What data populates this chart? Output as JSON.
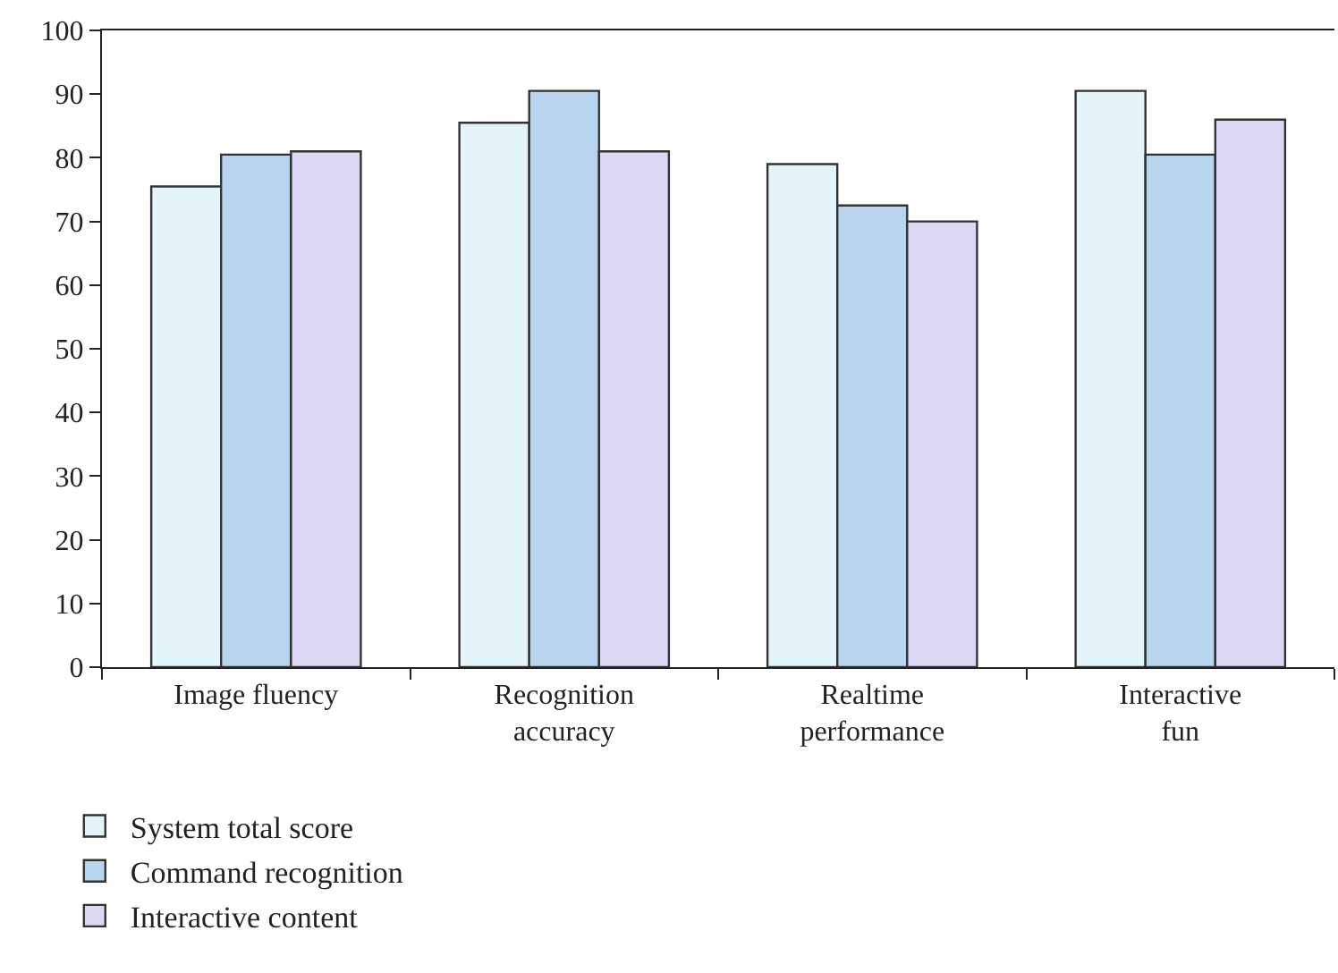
{
  "chart_data": {
    "type": "bar",
    "categories": [
      "Image fluency",
      "Recognition accuracy",
      "Realtime performance",
      "Interactive fun"
    ],
    "series": [
      {
        "name": "System total score",
        "color": "#e3f4fb",
        "values": [
          75.5,
          85.5,
          79,
          90.5
        ]
      },
      {
        "name": "Command recognition",
        "color": "#b7d5ee",
        "values": [
          80.5,
          90.5,
          72.5,
          80.5
        ]
      },
      {
        "name": "Interactive content",
        "color": "#ded7f4",
        "values": [
          81,
          81,
          70,
          86
        ]
      }
    ],
    "ylim": [
      0,
      100
    ],
    "yticks": [
      0,
      10,
      20,
      30,
      40,
      50,
      60,
      70,
      80,
      90,
      100
    ],
    "grid": false,
    "legend": "bottom left"
  }
}
